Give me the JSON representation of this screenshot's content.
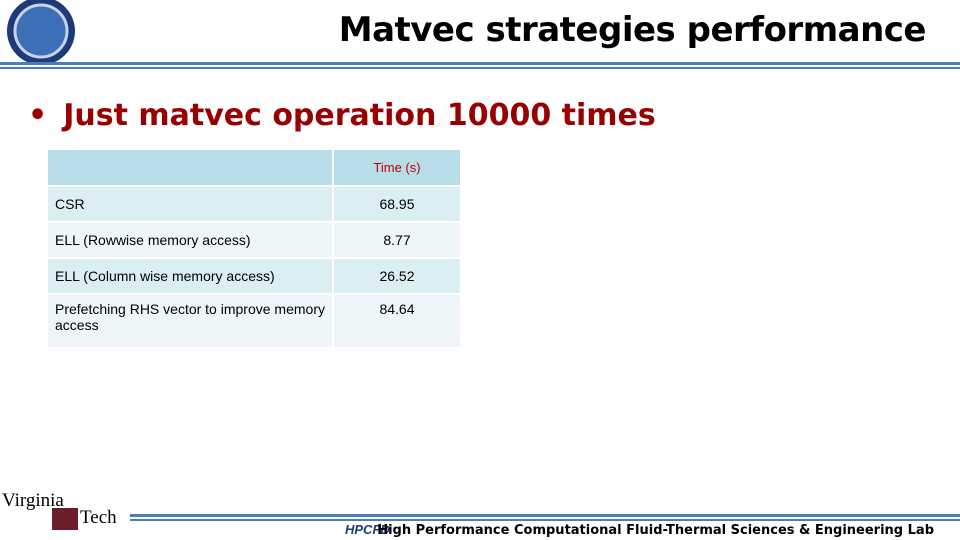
{
  "title": "Matvec strategies performance",
  "bullet": "Just matvec operation 10000 times",
  "table": {
    "header": [
      "Time (s)"
    ],
    "rows": [
      [
        "CSR",
        68.95
      ],
      [
        "ELL (Rowwise memory access)",
        8.77
      ],
      [
        "ELL (Column wise memory access)",
        26.52
      ],
      [
        "Prefetching RHS vector to improve memory access",
        84.64
      ]
    ]
  },
  "logo": {
    "top": "Virginia",
    "bottom": "Tech",
    "lab": "HPCFD"
  },
  "footer": "High Performance Computational Fluid-Thermal Sciences & Engineering Lab"
}
